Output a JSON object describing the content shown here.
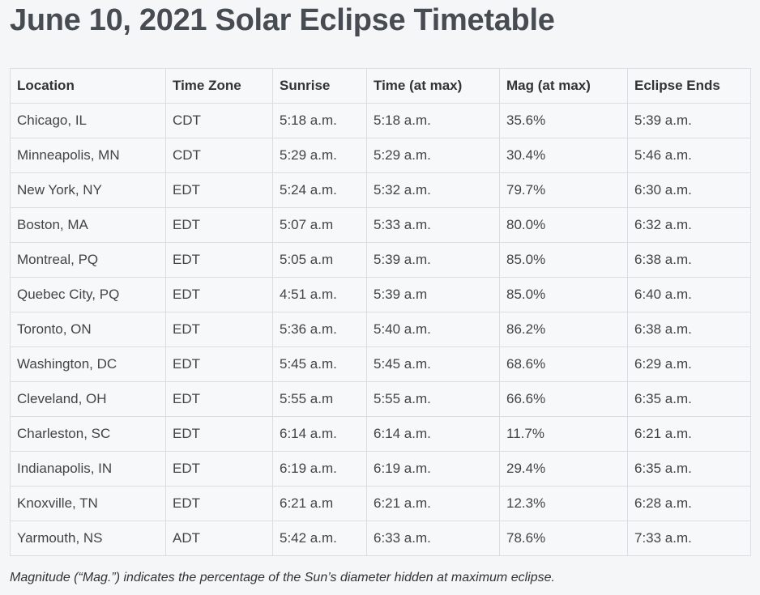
{
  "header": {
    "title": "June 10, 2021 Solar Eclipse Timetable"
  },
  "table": {
    "columns": [
      "Location",
      "Time Zone",
      "Sunrise",
      "Time (at max)",
      "Mag (at max)",
      "Eclipse Ends"
    ],
    "rows": [
      [
        "Chicago, IL",
        "CDT",
        "5:18 a.m.",
        "5:18 a.m.",
        "35.6%",
        "5:39 a.m."
      ],
      [
        "Minneapolis, MN",
        "CDT",
        "5:29 a.m.",
        "5:29 a.m.",
        "30.4%",
        "5:46 a.m."
      ],
      [
        "New York, NY",
        "EDT",
        "5:24 a.m.",
        "5:32 a.m.",
        "79.7%",
        "6:30 a.m."
      ],
      [
        "Boston, MA",
        "EDT",
        "5:07 a.m",
        "5:33 a.m.",
        "80.0%",
        "6:32 a.m."
      ],
      [
        "Montreal, PQ",
        "EDT",
        "5:05 a.m",
        "5:39 a.m.",
        "85.0%",
        "6:38 a.m."
      ],
      [
        "Quebec City, PQ",
        "EDT",
        "4:51 a.m.",
        "5:39 a.m",
        "85.0%",
        "6:40 a.m."
      ],
      [
        "Toronto, ON",
        "EDT",
        "5:36 a.m.",
        "5:40 a.m.",
        "86.2%",
        "6:38 a.m."
      ],
      [
        "Washington, DC",
        "EDT",
        "5:45 a.m.",
        "5:45 a.m.",
        "68.6%",
        "6:29 a.m."
      ],
      [
        "Cleveland, OH",
        "EDT",
        "5:55 a.m",
        "5:55 a.m.",
        "66.6%",
        "6:35 a.m."
      ],
      [
        "Charleston, SC",
        "EDT",
        "6:14 a.m.",
        "6:14 a.m.",
        "11.7%",
        "6:21 a.m."
      ],
      [
        "Indianapolis, IN",
        "EDT",
        "6:19 a.m.",
        "6:19 a.m.",
        "29.4%",
        "6:35 a.m."
      ],
      [
        "Knoxville, TN",
        "EDT",
        "6:21 a.m",
        "6:21 a.m.",
        "12.3%",
        "6:28 a.m."
      ],
      [
        "Yarmouth, NS",
        "ADT",
        "5:42 a.m.",
        "6:33 a.m.",
        "78.6%",
        "7:33 a.m."
      ]
    ]
  },
  "caption": "Magnitude (“Mag.”) indicates the percentage of the Sun’s diameter hidden at maximum eclipse."
}
